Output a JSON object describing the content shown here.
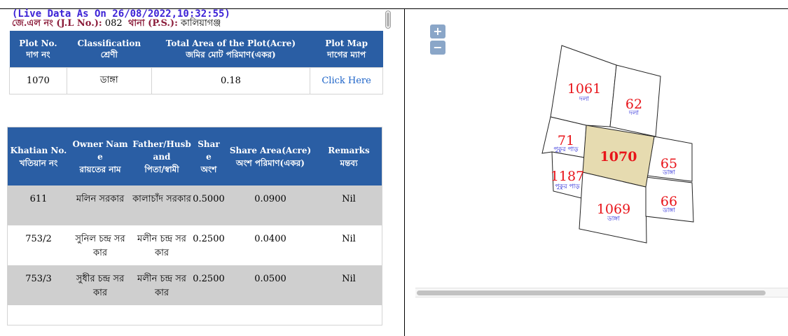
{
  "header": {
    "live_data": "(Live Data As On 26/08/2022,10:32:55)",
    "jl_label": "জে.এল নং (J.L No.):",
    "jl_value": "082",
    "ps_label": "থানা (P.S.):",
    "ps_value": "কালিয়াগঞ্জ"
  },
  "plot_table": {
    "headers": [
      {
        "en": "Plot No.",
        "bn": "দাগ নং"
      },
      {
        "en": "Classification",
        "bn": "শ্রেণী"
      },
      {
        "en": "Total Area of the Plot(Acre)",
        "bn": "জমির মোট পরিমাণ(একর)"
      },
      {
        "en": "Plot Map",
        "bn": "দাগের ম্যাপ"
      }
    ],
    "row": {
      "plot_no": "1070",
      "classification": "ডাঙ্গা",
      "total_area": "0.18",
      "plot_map_link": "Click Here"
    }
  },
  "khatian_table": {
    "headers": [
      {
        "l1": "",
        "l2": "",
        "l3": "Khatian No.",
        "l4": "খতিয়ান নং"
      },
      {
        "l1": "Owner Nam",
        "l2": "e",
        "l3": "",
        "l4": "রায়তের নাম"
      },
      {
        "l1": "Father/Husb",
        "l2": "and",
        "l3": "",
        "l4": "পিতা/স্বামী"
      },
      {
        "l1": "Shar",
        "l2": "e",
        "l3": "",
        "l4": "অংশ"
      },
      {
        "l1": "",
        "l2": "",
        "l3": "Share Area(Acre)",
        "l4": "অংশ পরিমাণ(একর)"
      },
      {
        "l1": "",
        "l2": "",
        "l3": "Remarks",
        "l4": "মন্তব্য"
      }
    ],
    "rows": [
      {
        "khatian": "611",
        "owner": "মলিন সরকার",
        "father": "কালাচাঁদ সরকার",
        "share": "0.5000",
        "share_area": "0.0900",
        "remarks": "Nil"
      },
      {
        "khatian": "753/2",
        "owner": "সুনিল চন্দ্র সরকার",
        "father": "মলীন চন্দ্র সরকার",
        "share": "0.2500",
        "share_area": "0.0400",
        "remarks": "Nil"
      },
      {
        "khatian": "753/3",
        "owner": "সুধীর চন্দ্র সরকার",
        "father": "মলীন চন্দ্র সরকার",
        "share": "0.2500",
        "share_area": "0.0500",
        "remarks": "Nil"
      }
    ]
  },
  "map": {
    "zoom_in": "+",
    "zoom_out": "−",
    "highlight_color": "#e6dbb0",
    "label_color": "#e8141a",
    "class_color": "#1b1bd6",
    "plots": [
      {
        "no": "1061",
        "cls": "দলা"
      },
      {
        "no": "62",
        "cls": "দলা"
      },
      {
        "no": "71",
        "cls": "পুকুর পাড়"
      },
      {
        "no": "1070",
        "cls": ""
      },
      {
        "no": "65",
        "cls": "ডাঙ্গা"
      },
      {
        "no": "1187",
        "cls": "পুকুর পাড়"
      },
      {
        "no": "1069",
        "cls": "ডাঙ্গা"
      },
      {
        "no": "66",
        "cls": "ডাঙ্গা"
      }
    ]
  }
}
